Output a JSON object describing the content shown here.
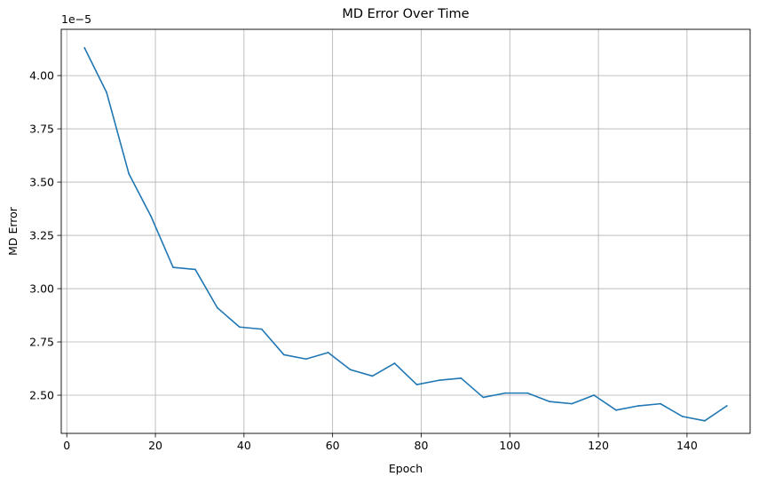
{
  "chart_data": {
    "type": "line",
    "title": "MD Error Over Time",
    "xlabel": "Epoch",
    "ylabel": "MD Error",
    "y_offset_text": "1e−5",
    "xlim": [
      -1.25,
      154.25
    ],
    "ylim": [
      2.3209,
      4.2171
    ],
    "xticks": [
      0,
      20,
      40,
      60,
      80,
      100,
      120,
      140
    ],
    "xtick_labels": [
      "0",
      "20",
      "40",
      "60",
      "80",
      "100",
      "120",
      "140"
    ],
    "yticks": [
      2.5,
      2.75,
      3.0,
      3.25,
      3.5,
      3.75,
      4.0
    ],
    "ytick_labels": [
      "2.50",
      "2.75",
      "3.00",
      "3.25",
      "3.50",
      "3.75",
      "4.00"
    ],
    "grid": true,
    "line_color": "#1f77b4",
    "series": [
      {
        "x": [
          4,
          9,
          14,
          19,
          24,
          29,
          34,
          39,
          44,
          49,
          54,
          59,
          64,
          69,
          74,
          79,
          84,
          89,
          94,
          99,
          104,
          109,
          114,
          119,
          124,
          129,
          134,
          139,
          144,
          149
        ],
        "values": [
          4.13,
          3.92,
          3.54,
          3.34,
          3.1,
          3.09,
          2.91,
          2.82,
          2.81,
          2.69,
          2.67,
          2.7,
          2.62,
          2.59,
          2.65,
          2.55,
          2.57,
          2.58,
          2.49,
          2.51,
          2.51,
          2.47,
          2.46,
          2.5,
          2.43,
          2.45,
          2.46,
          2.4,
          2.38,
          2.45
        ]
      }
    ]
  }
}
